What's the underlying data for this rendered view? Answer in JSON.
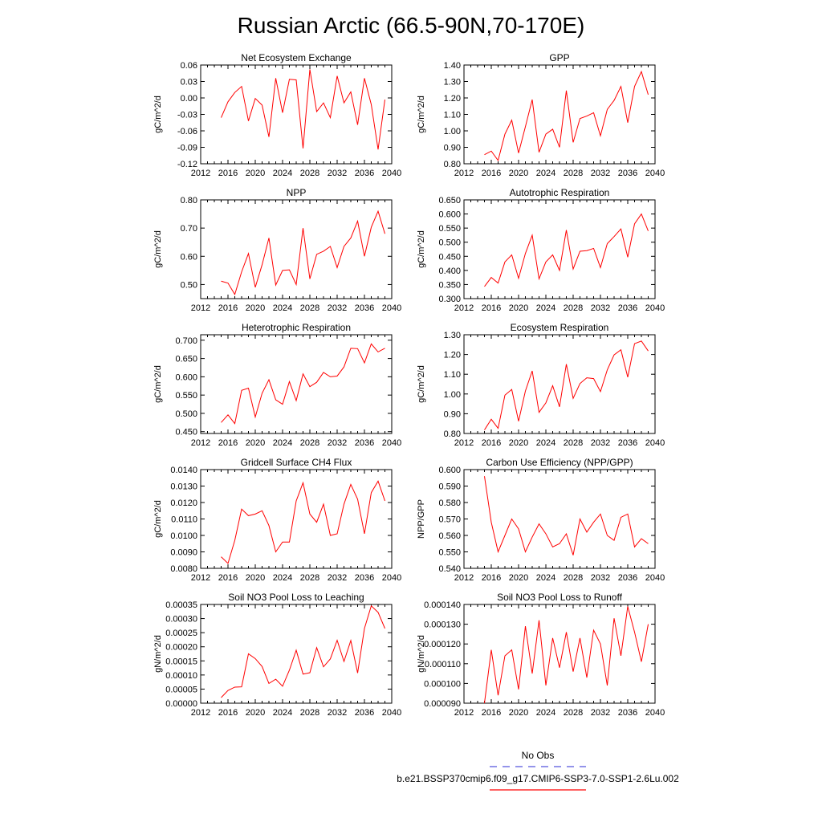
{
  "figure": {
    "title": "Russian Arctic (66.5-90N,70-170E)",
    "line_color": "#ff0000",
    "obs_color": "#5555dd",
    "legend": [
      {
        "label": "No Obs",
        "style": "dashed",
        "color": "#5555dd"
      },
      {
        "label": "b.e21.BSSP370cmip6.f09_g17.CMIP6-SSP3-7.0-SSP1-2.6Lu.002",
        "style": "solid",
        "color": "#ff0000"
      }
    ]
  },
  "chart_data": [
    {
      "type": "line",
      "title": "Net Ecosystem Exchange",
      "ylabel": "gC/m^2/d",
      "xlim": [
        2012,
        2040
      ],
      "xticks": [
        "2012",
        "2016",
        "2020",
        "2024",
        "2028",
        "2032",
        "2036",
        "2040"
      ],
      "ylim": [
        -0.12,
        0.06
      ],
      "yticks": [
        "-0.12",
        "-0.09",
        "-0.06",
        "-0.03",
        "0.00",
        "0.03",
        "0.06"
      ],
      "x": [
        2015,
        2016,
        2017,
        2018,
        2019,
        2020,
        2021,
        2022,
        2023,
        2024,
        2025,
        2026,
        2027,
        2028,
        2029,
        2030,
        2031,
        2032,
        2033,
        2034,
        2035,
        2036,
        2037,
        2038,
        2039
      ],
      "series": [
        {
          "values": [
            -0.036,
            -0.007,
            0.01,
            0.021,
            -0.042,
            -0.001,
            -0.013,
            -0.071,
            0.036,
            -0.027,
            0.034,
            0.033,
            -0.092,
            0.052,
            -0.025,
            -0.009,
            -0.036,
            0.04,
            -0.009,
            0.011,
            -0.049,
            0.036,
            -0.012,
            -0.094,
            -0.003
          ]
        }
      ]
    },
    {
      "type": "line",
      "title": "GPP",
      "ylabel": "gC/m^2/d",
      "xlim": [
        2012,
        2040
      ],
      "xticks": [
        "2012",
        "2016",
        "2020",
        "2024",
        "2028",
        "2032",
        "2036",
        "2040"
      ],
      "ylim": [
        0.8,
        1.4
      ],
      "yticks": [
        "0.80",
        "0.90",
        "1.00",
        "1.10",
        "1.20",
        "1.30",
        "1.40"
      ],
      "x": [
        2015,
        2016,
        2017,
        2018,
        2019,
        2020,
        2021,
        2022,
        2023,
        2024,
        2025,
        2026,
        2027,
        2028,
        2029,
        2030,
        2031,
        2032,
        2033,
        2034,
        2035,
        2036,
        2037,
        2038,
        2039
      ],
      "series": [
        {
          "values": [
            0.855,
            0.877,
            0.82,
            0.98,
            1.065,
            0.865,
            1.025,
            1.19,
            0.87,
            0.98,
            1.01,
            0.9,
            1.245,
            0.93,
            1.075,
            1.09,
            1.11,
            0.97,
            1.13,
            1.185,
            1.27,
            1.05,
            1.27,
            1.36,
            1.22
          ]
        }
      ]
    },
    {
      "type": "line",
      "title": "NPP",
      "ylabel": "gC/m^2/d",
      "xlim": [
        2012,
        2040
      ],
      "xticks": [
        "2012",
        "2016",
        "2020",
        "2024",
        "2028",
        "2032",
        "2036",
        "2040"
      ],
      "ylim": [
        0.45,
        0.8
      ],
      "yticks": [
        "0.50",
        "0.60",
        "0.70",
        "0.80"
      ],
      "x": [
        2015,
        2016,
        2017,
        2018,
        2019,
        2020,
        2021,
        2022,
        2023,
        2024,
        2025,
        2026,
        2027,
        2028,
        2029,
        2030,
        2031,
        2032,
        2033,
        2034,
        2035,
        2036,
        2037,
        2038,
        2039
      ],
      "series": [
        {
          "values": [
            0.512,
            0.505,
            0.465,
            0.545,
            0.61,
            0.49,
            0.57,
            0.665,
            0.498,
            0.55,
            0.552,
            0.5,
            0.7,
            0.52,
            0.607,
            0.618,
            0.635,
            0.56,
            0.635,
            0.665,
            0.725,
            0.6,
            0.703,
            0.76,
            0.68
          ]
        }
      ]
    },
    {
      "type": "line",
      "title": "Autotrophic Respiration",
      "ylabel": "gC/m^2/d",
      "xlim": [
        2012,
        2040
      ],
      "xticks": [
        "2012",
        "2016",
        "2020",
        "2024",
        "2028",
        "2032",
        "2036",
        "2040"
      ],
      "ylim": [
        0.3,
        0.65
      ],
      "yticks": [
        "0.300",
        "0.350",
        "0.400",
        "0.450",
        "0.500",
        "0.550",
        "0.600",
        "0.650"
      ],
      "x": [
        2015,
        2016,
        2017,
        2018,
        2019,
        2020,
        2021,
        2022,
        2023,
        2024,
        2025,
        2026,
        2027,
        2028,
        2029,
        2030,
        2031,
        2032,
        2033,
        2034,
        2035,
        2036,
        2037,
        2038,
        2039
      ],
      "series": [
        {
          "values": [
            0.343,
            0.375,
            0.355,
            0.43,
            0.455,
            0.372,
            0.46,
            0.525,
            0.37,
            0.43,
            0.455,
            0.4,
            0.543,
            0.405,
            0.468,
            0.47,
            0.478,
            0.41,
            0.495,
            0.52,
            0.547,
            0.447,
            0.565,
            0.6,
            0.54
          ]
        }
      ]
    },
    {
      "type": "line",
      "title": "Heterotrophic Respiration",
      "ylabel": "gC/m^2/d",
      "xlim": [
        2012,
        2040
      ],
      "xticks": [
        "2012",
        "2016",
        "2020",
        "2024",
        "2028",
        "2032",
        "2036",
        "2040"
      ],
      "ylim": [
        0.445,
        0.715
      ],
      "yticks": [
        "0.450",
        "0.500",
        "0.550",
        "0.600",
        "0.650",
        "0.700"
      ],
      "x": [
        2015,
        2016,
        2017,
        2018,
        2019,
        2020,
        2021,
        2022,
        2023,
        2024,
        2025,
        2026,
        2027,
        2028,
        2029,
        2030,
        2031,
        2032,
        2033,
        2034,
        2035,
        2036,
        2037,
        2038,
        2039
      ],
      "series": [
        {
          "values": [
            0.475,
            0.496,
            0.472,
            0.563,
            0.569,
            0.49,
            0.555,
            0.592,
            0.537,
            0.525,
            0.587,
            0.535,
            0.608,
            0.573,
            0.585,
            0.612,
            0.6,
            0.602,
            0.627,
            0.678,
            0.677,
            0.638,
            0.69,
            0.668,
            0.678
          ]
        }
      ]
    },
    {
      "type": "line",
      "title": "Ecosystem Respiration",
      "ylabel": "gC/m^2/d",
      "xlim": [
        2012,
        2040
      ],
      "xticks": [
        "2012",
        "2016",
        "2020",
        "2024",
        "2028",
        "2032",
        "2036",
        "2040"
      ],
      "ylim": [
        0.8,
        1.3
      ],
      "yticks": [
        "0.80",
        "0.90",
        "1.00",
        "1.10",
        "1.20",
        "1.30"
      ],
      "x": [
        2015,
        2016,
        2017,
        2018,
        2019,
        2020,
        2021,
        2022,
        2023,
        2024,
        2025,
        2026,
        2027,
        2028,
        2029,
        2030,
        2031,
        2032,
        2033,
        2034,
        2035,
        2036,
        2037,
        2038,
        2039
      ],
      "series": [
        {
          "values": [
            0.818,
            0.872,
            0.826,
            0.994,
            1.023,
            0.862,
            1.015,
            1.117,
            0.907,
            0.955,
            1.042,
            0.935,
            1.151,
            0.978,
            1.053,
            1.082,
            1.078,
            1.012,
            1.122,
            1.198,
            1.224,
            1.085,
            1.255,
            1.268,
            1.218
          ]
        }
      ]
    },
    {
      "type": "line",
      "title": "Gridcell Surface CH4 Flux",
      "ylabel": "gC/m^2/d",
      "xlim": [
        2012,
        2040
      ],
      "xticks": [
        "2012",
        "2016",
        "2020",
        "2024",
        "2028",
        "2032",
        "2036",
        "2040"
      ],
      "ylim": [
        0.008,
        0.014
      ],
      "yticks": [
        "0.0080",
        "0.0090",
        "0.0100",
        "0.0110",
        "0.0120",
        "0.0130",
        "0.0140"
      ],
      "x": [
        2015,
        2016,
        2017,
        2018,
        2019,
        2020,
        2021,
        2022,
        2023,
        2024,
        2025,
        2026,
        2027,
        2028,
        2029,
        2030,
        2031,
        2032,
        2033,
        2034,
        2035,
        2036,
        2037,
        2038,
        2039
      ],
      "series": [
        {
          "values": [
            0.0087,
            0.0083,
            0.0097,
            0.0116,
            0.0112,
            0.0113,
            0.0115,
            0.0106,
            0.009,
            0.0096,
            0.0096,
            0.0121,
            0.0132,
            0.0113,
            0.0108,
            0.0119,
            0.01,
            0.0101,
            0.0119,
            0.0131,
            0.0122,
            0.0101,
            0.0126,
            0.0133,
            0.0121
          ]
        }
      ]
    },
    {
      "type": "line",
      "title": "Carbon Use Efficiency (NPP/GPP)",
      "ylabel": "NPP/GPP",
      "xlim": [
        2012,
        2040
      ],
      "xticks": [
        "2012",
        "2016",
        "2020",
        "2024",
        "2028",
        "2032",
        "2036",
        "2040"
      ],
      "ylim": [
        0.54,
        0.6
      ],
      "yticks": [
        "0.540",
        "0.550",
        "0.560",
        "0.570",
        "0.580",
        "0.590",
        "0.600"
      ],
      "x": [
        2015,
        2016,
        2017,
        2018,
        2019,
        2020,
        2021,
        2022,
        2023,
        2024,
        2025,
        2026,
        2027,
        2028,
        2029,
        2030,
        2031,
        2032,
        2033,
        2034,
        2035,
        2036,
        2037,
        2038,
        2039
      ],
      "series": [
        {
          "values": [
            0.596,
            0.568,
            0.55,
            0.56,
            0.57,
            0.564,
            0.55,
            0.559,
            0.567,
            0.561,
            0.553,
            0.555,
            0.561,
            0.548,
            0.57,
            0.562,
            0.568,
            0.573,
            0.56,
            0.557,
            0.571,
            0.573,
            0.553,
            0.558,
            0.555
          ]
        }
      ]
    },
    {
      "type": "line",
      "title": "Soil NO3 Pool Loss to Leaching",
      "ylabel": "gN/m^2/d",
      "xlim": [
        2012,
        2040
      ],
      "xticks": [
        "2012",
        "2016",
        "2020",
        "2024",
        "2028",
        "2032",
        "2036",
        "2040"
      ],
      "ylim": [
        0.0,
        0.00035
      ],
      "yticks": [
        "0.00000",
        "0.00005",
        "0.00010",
        "0.00015",
        "0.00020",
        "0.00025",
        "0.00030",
        "0.00035"
      ],
      "x": [
        2015,
        2016,
        2017,
        2018,
        2019,
        2020,
        2021,
        2022,
        2023,
        2024,
        2025,
        2026,
        2027,
        2028,
        2029,
        2030,
        2031,
        2032,
        2033,
        2034,
        2035,
        2036,
        2037,
        2038,
        2039
      ],
      "series": [
        {
          "values": [
            2e-05,
            4.5e-05,
            5.7e-05,
            5.8e-05,
            0.000175,
            0.000158,
            0.00013,
            7e-05,
            8.5e-05,
            6e-05,
            0.000117,
            0.000188,
            0.000103,
            0.000108,
            0.000197,
            0.000129,
            0.000157,
            0.000223,
            0.000148,
            0.000222,
            0.000107,
            0.000265,
            0.000345,
            0.000322,
            0.000265
          ]
        }
      ]
    },
    {
      "type": "line",
      "title": "Soil NO3 Pool Loss to Runoff",
      "ylabel": "gN/m^2/d",
      "xlim": [
        2012,
        2040
      ],
      "xticks": [
        "2012",
        "2016",
        "2020",
        "2024",
        "2028",
        "2032",
        "2036",
        "2040"
      ],
      "ylim": [
        9e-05,
        0.00014
      ],
      "yticks": [
        "0.000090",
        "0.000100",
        "0.000110",
        "0.000120",
        "0.000130",
        "0.000140"
      ],
      "x": [
        2015,
        2016,
        2017,
        2018,
        2019,
        2020,
        2021,
        2022,
        2023,
        2024,
        2025,
        2026,
        2027,
        2028,
        2029,
        2030,
        2031,
        2032,
        2033,
        2034,
        2035,
        2036,
        2037,
        2038,
        2039
      ],
      "series": [
        {
          "values": [
            9e-05,
            0.000117,
            9.4e-05,
            0.000114,
            0.000117,
            9.7e-05,
            0.000129,
            0.000105,
            0.000132,
            9.9e-05,
            0.000123,
            0.000108,
            0.000126,
            0.000106,
            0.000123,
            0.000103,
            0.000127,
            0.00012,
            9.9e-05,
            0.000133,
            0.000114,
            0.000139,
            0.000126,
            0.000111,
            0.00013
          ]
        }
      ]
    }
  ]
}
